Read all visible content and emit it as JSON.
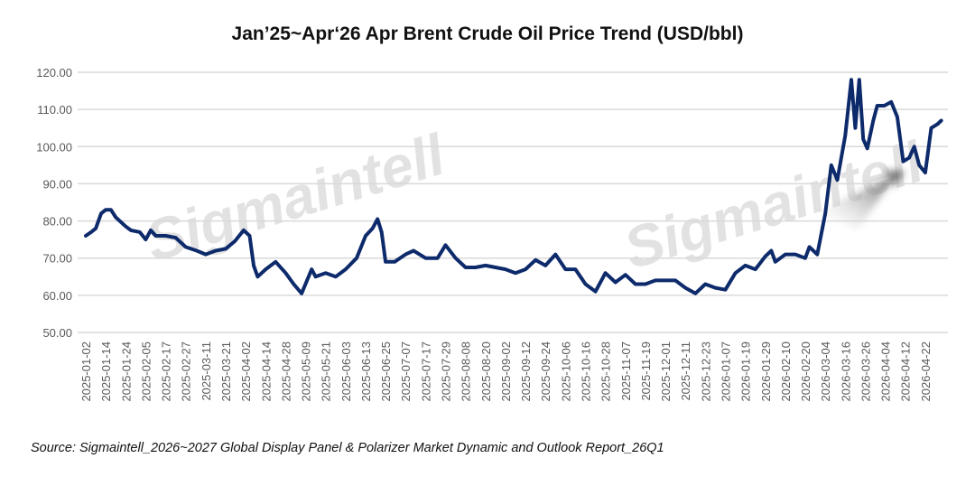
{
  "chart_data": {
    "type": "line",
    "title": "Jan’25~Apr‘26 Apr Brent Crude Oil Price Trend (USD/bbl)",
    "source": "Source: Sigmaintell_2026~2027 Global Display Panel & Polarizer Market Dynamic and Outlook Report_26Q1",
    "watermark": "Sigmaintell",
    "xlabel": "",
    "ylabel": "",
    "ylim": [
      50,
      120
    ],
    "yticks": [
      "50.00",
      "60.00",
      "70.00",
      "80.00",
      "90.00",
      "100.00",
      "110.00",
      "120.00"
    ],
    "grid": true,
    "categories": [
      "2025-01-02",
      "2025-01-14",
      "2025-01-24",
      "2025-02-05",
      "2025-02-17",
      "2025-02-27",
      "2025-03-11",
      "2025-03-21",
      "2025-04-02",
      "2025-04-14",
      "2025-04-28",
      "2025-05-09",
      "2025-05-21",
      "2025-06-03",
      "2025-06-13",
      "2025-06-25",
      "2025-07-07",
      "2025-07-17",
      "2025-07-29",
      "2025-08-08",
      "2025-08-20",
      "2025-09-02",
      "2025-09-12",
      "2025-09-24",
      "2025-10-06",
      "2025-10-16",
      "2025-10-28",
      "2025-11-07",
      "2025-11-19",
      "2025-12-01",
      "2025-12-11",
      "2025-12-23",
      "2026-01-07",
      "2026-01-19",
      "2026-01-29",
      "2026-02-10",
      "2026-02-20",
      "2026-03-04",
      "2026-03-16",
      "2026-03-26",
      "2026-04-04",
      "2026-04-12",
      "2026-04-22"
    ],
    "series": [
      {
        "name": "Brent Crude Oil (USD/bbl)",
        "color": "#0d2a6b",
        "x": [
          0,
          0.27,
          0.5,
          0.77,
          1,
          1.26,
          1.5,
          2,
          2.26,
          2.7,
          3,
          3.25,
          3.5,
          4,
          4.5,
          5,
          5.55,
          6,
          6.5,
          7,
          7.45,
          7.9,
          8.2,
          8.4,
          8.6,
          9,
          9.5,
          10,
          10.4,
          10.8,
          11.3,
          11.5,
          12,
          12.5,
          13,
          13.55,
          14,
          14.35,
          14.6,
          14.8,
          15,
          15.45,
          16,
          16.4,
          17,
          17.6,
          18,
          18.5,
          19,
          19.5,
          20,
          20.5,
          21,
          21.5,
          22,
          22.5,
          23,
          23.5,
          24,
          24.5,
          25,
          25.5,
          26,
          26.5,
          27,
          27.5,
          28,
          28.5,
          29,
          29.5,
          30,
          30.5,
          31,
          31.5,
          32,
          32.5,
          33,
          33.5,
          34,
          34.3,
          34.5,
          35,
          35.5,
          36,
          36.2,
          36.6,
          37,
          37.3,
          37.6,
          38,
          38.3,
          38.5,
          38.7,
          38.9,
          39.1,
          39.4,
          39.6,
          39.95,
          40.3,
          40.6,
          40.9,
          41.2,
          41.45,
          41.7,
          42,
          42.3,
          42.6,
          42.8
        ],
        "values": [
          76,
          77,
          78,
          82,
          83,
          83,
          81,
          78.5,
          77.5,
          77,
          75,
          77.5,
          76,
          76,
          75.5,
          73,
          72,
          71,
          72,
          72.5,
          74.5,
          77.5,
          76,
          68,
          65,
          67,
          69,
          66,
          63,
          60.5,
          67,
          65,
          66,
          65,
          67,
          70,
          76,
          78,
          80.5,
          77,
          69,
          69,
          71,
          72,
          70,
          70,
          73.5,
          70,
          67.5,
          67.5,
          68,
          67.5,
          67,
          66,
          67,
          69.5,
          68,
          71,
          67,
          67,
          63,
          61,
          66,
          63.5,
          65.5,
          63,
          63,
          64,
          64,
          64,
          62,
          60.5,
          63,
          62,
          61.5,
          66,
          68,
          67,
          70.5,
          72,
          69,
          71,
          71,
          70,
          73,
          71,
          82,
          95,
          91,
          103,
          118,
          105,
          118,
          102,
          99.5,
          107,
          111,
          111,
          112,
          108,
          96,
          97,
          100,
          95,
          93,
          105,
          106,
          107
        ]
      }
    ]
  }
}
